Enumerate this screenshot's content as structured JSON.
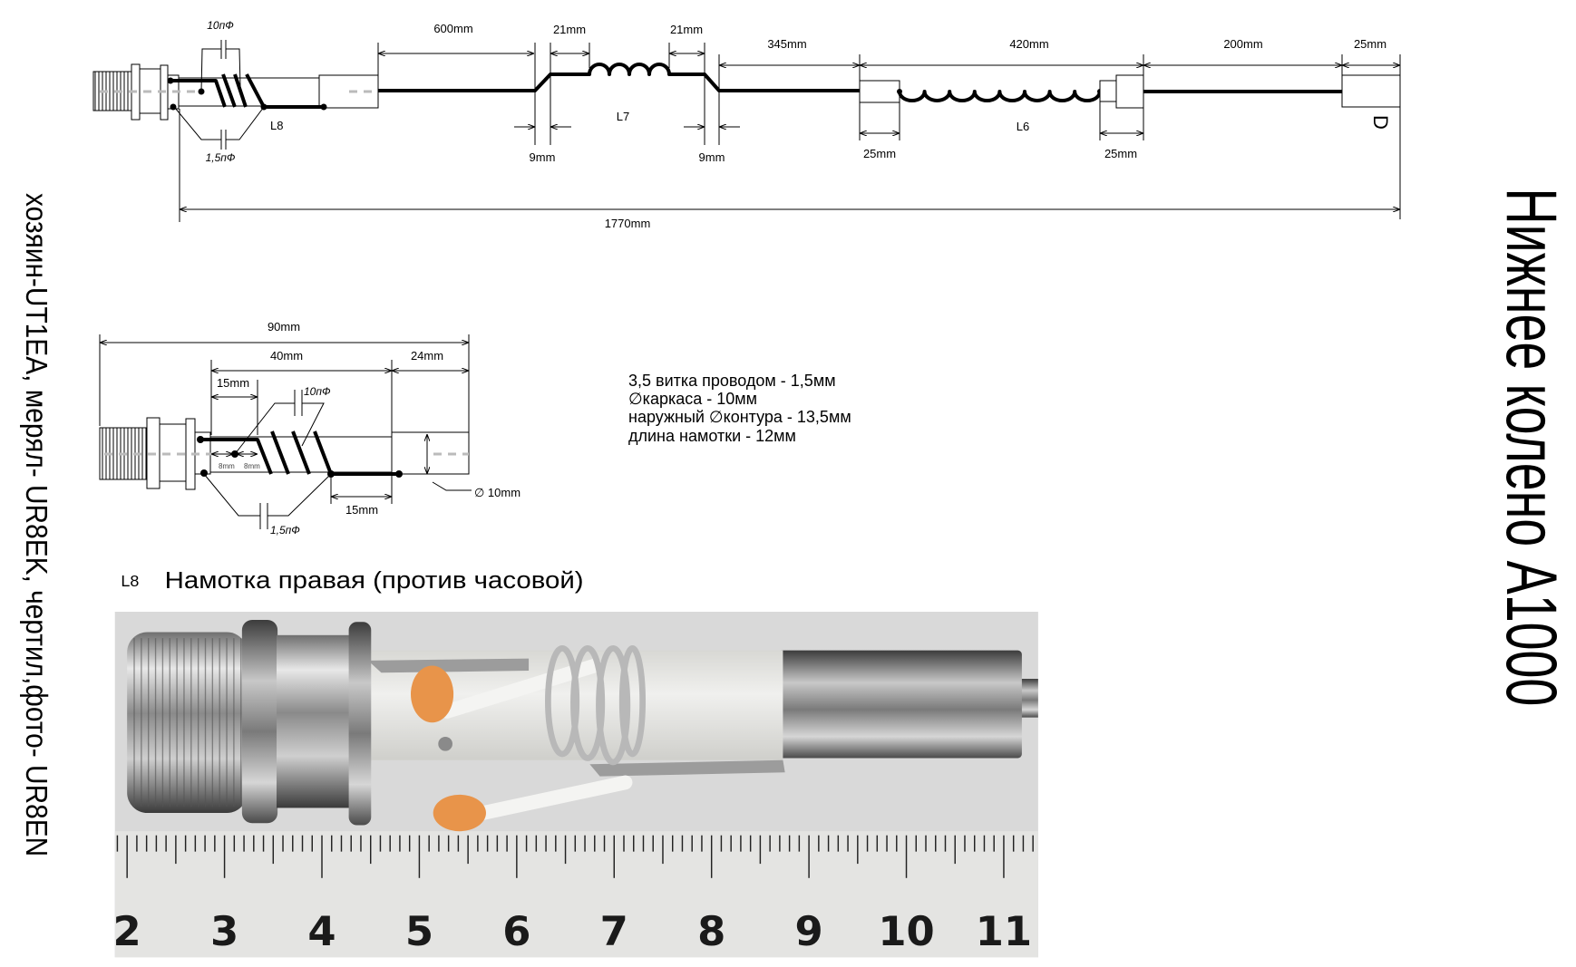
{
  "title": "Нижнее колено А1000",
  "credits": "хозяин-UT1EA, мерял- UR8EK, чертил,фото- UR8EN",
  "main_diagram": {
    "cap_top": "10пФ",
    "cap_bottom": "1,5пФ",
    "coil_l8": "L8",
    "coil_l7": "L7",
    "coil_l6": "L6",
    "end_mark": "D",
    "dim_600": "600mm",
    "dim_21_left": "21mm",
    "dim_21_right": "21mm",
    "dim_345": "345mm",
    "dim_420": "420mm",
    "dim_200": "200mm",
    "dim_25_end": "25mm",
    "dim_9_left": "9mm",
    "dim_9_right": "9mm",
    "dim_25_l6_left": "25mm",
    "dim_25_l6_right": "25mm",
    "dim_total": "1770mm"
  },
  "detail_diagram": {
    "dim_90": "90mm",
    "dim_40": "40mm",
    "dim_24": "24mm",
    "dim_15_top": "15mm",
    "dim_15_bottom": "15mm",
    "dim_8_left": "8mm",
    "dim_8_right": "8mm",
    "cap_top": "10пФ",
    "cap_bottom": "1,5пФ",
    "diameter": "∅ 10mm"
  },
  "specs": [
    "3,5 витка проводом - 1,5мм",
    "∅каркаса - 10мм",
    "наружный ∅контура - 13,5мм",
    "длина намотки - 12мм"
  ],
  "caption": {
    "coil": "L8",
    "text": "Намотка правая (против часовой)"
  },
  "photo": {
    "ruler_numbers": [
      "2",
      "3",
      "4",
      "5",
      "6",
      "7",
      "8",
      "9",
      "10",
      "11"
    ],
    "capacitor_color": "#e8944a"
  }
}
